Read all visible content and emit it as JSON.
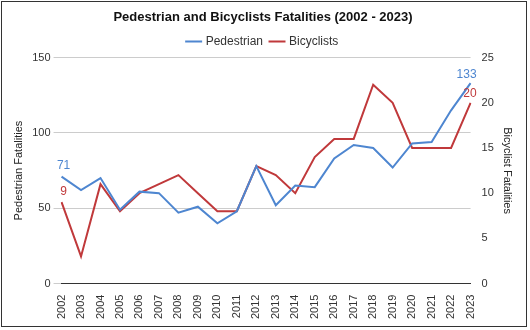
{
  "chart_data": {
    "type": "line",
    "title": "Pedestrian and Bicyclists Fatalities (2002 - 2023)",
    "categories": [
      "2002",
      "2003",
      "2004",
      "2005",
      "2006",
      "2007",
      "2008",
      "2009",
      "2010",
      "2011",
      "2012",
      "2013",
      "2014",
      "2015",
      "2016",
      "2017",
      "2018",
      "2019",
      "2020",
      "2021",
      "2022",
      "2023"
    ],
    "series": [
      {
        "name": "Pedestrian",
        "color": "#4e86d0",
        "axis": "y",
        "values": [
          71,
          62,
          70,
          49,
          61,
          60,
          47,
          51,
          40,
          48,
          78,
          52,
          65,
          64,
          83,
          92,
          90,
          77,
          93,
          94,
          115,
          133
        ]
      },
      {
        "name": "Bicyclists",
        "color": "#c0393b",
        "axis": "y2",
        "values": [
          9,
          3,
          11,
          8,
          10,
          11,
          12,
          10,
          8,
          8,
          13,
          12,
          10,
          14,
          16,
          16,
          22,
          20,
          15,
          15,
          15,
          20
        ]
      }
    ],
    "y_label": "Pedestrian Fatalities",
    "y2_label": "Bicyclist Fatalities",
    "ylim": [
      0,
      150
    ],
    "yticks": [
      0,
      50,
      100,
      150
    ],
    "y2lim": [
      0,
      25
    ],
    "y2ticks": [
      0,
      5,
      10,
      15,
      20,
      25
    ],
    "annotations": [
      {
        "series": "Pedestrian",
        "x": "2002",
        "text": "71"
      },
      {
        "series": "Pedestrian",
        "x": "2023",
        "text": "133"
      },
      {
        "series": "Bicyclists",
        "x": "2002",
        "text": "9"
      },
      {
        "series": "Bicyclists",
        "x": "2023",
        "text": "20"
      }
    ],
    "legend": "top",
    "grid": true
  }
}
